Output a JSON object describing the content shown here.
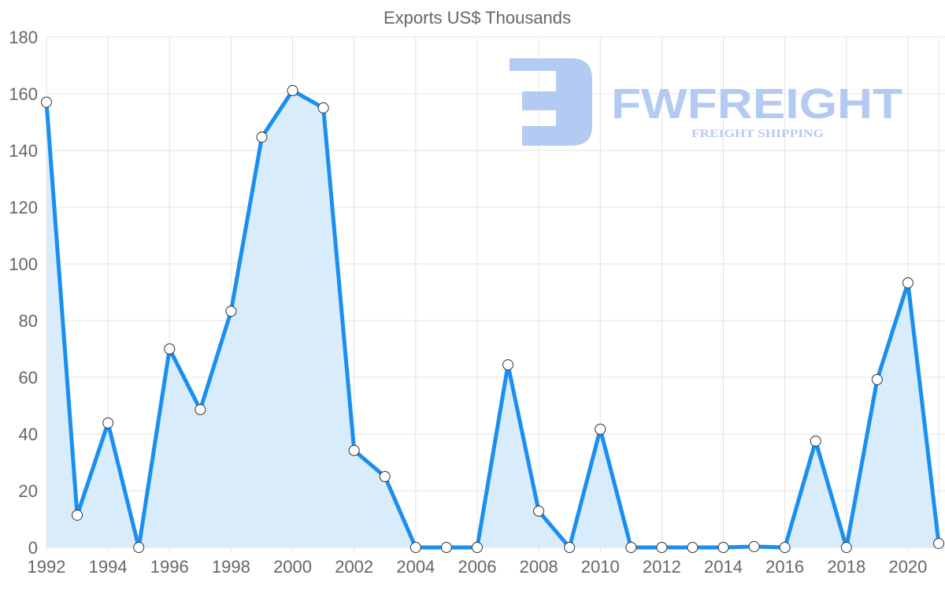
{
  "chart_data": {
    "type": "line",
    "title": "Exports US$ Thousands",
    "xlabel": "",
    "ylabel": "",
    "x": [
      1992,
      1993,
      1994,
      1995,
      1996,
      1997,
      1998,
      1999,
      2000,
      2001,
      2002,
      2003,
      2004,
      2005,
      2006,
      2007,
      2008,
      2009,
      2010,
      2011,
      2012,
      2013,
      2014,
      2015,
      2016,
      2017,
      2018,
      2019,
      2020,
      2021
    ],
    "series": [
      {
        "name": "Exports US$ Thousands",
        "values": [
          157,
          11.4,
          43.9,
          0,
          70,
          48.6,
          83.3,
          144.7,
          161.1,
          155,
          34.2,
          25,
          0,
          0,
          0,
          64.4,
          12.8,
          0,
          41.7,
          0,
          0,
          0,
          0,
          0.3,
          0,
          37.5,
          0,
          59.2,
          93.3,
          1.4
        ]
      }
    ],
    "ylim": [
      0,
      180
    ],
    "yticks": [
      "0",
      "20",
      "40",
      "60",
      "80",
      "100",
      "120",
      "140",
      "160",
      "180"
    ],
    "xticks": [
      "1992",
      "1994",
      "1996",
      "1998",
      "2000",
      "2002",
      "2004",
      "2006",
      "2008",
      "2010",
      "2012",
      "2014",
      "2016",
      "2018",
      "2020"
    ],
    "grid": true,
    "legend": "none",
    "colors": {
      "line": "#1a8fef",
      "fill": "#d9ecfc",
      "point_fill": "#ffffff",
      "point_stroke": "#333333"
    }
  },
  "watermark": {
    "brand": "FWFREIGHT",
    "tagline": "FREIGHT SHIPPING",
    "color": "#b3cbf3"
  }
}
